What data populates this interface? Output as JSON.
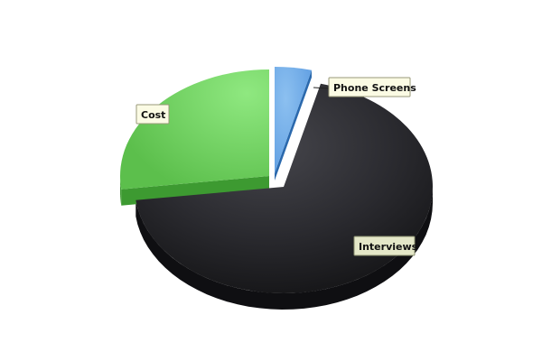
{
  "chart_data": {
    "type": "pie",
    "style": "3d-exploded",
    "legend": "none",
    "slices": [
      {
        "label": "Phone Screens",
        "value": 4,
        "color": "#5b9be0"
      },
      {
        "label": "Interviews",
        "value": 69,
        "color": "#2a2a2e"
      },
      {
        "label": "Cost",
        "value": 27,
        "color": "#6ccc5a"
      }
    ]
  }
}
